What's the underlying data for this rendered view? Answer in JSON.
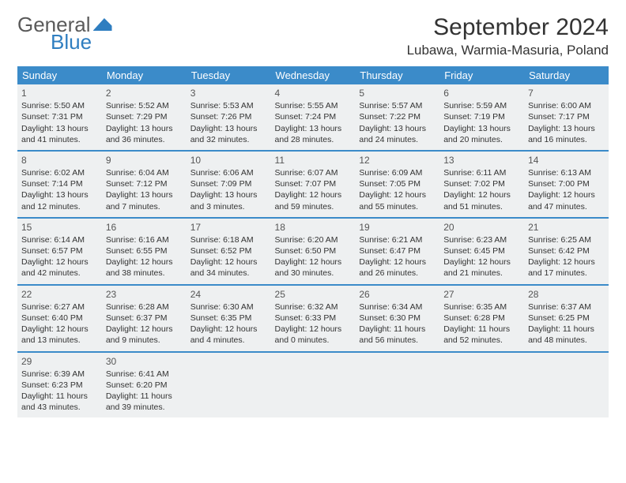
{
  "brand": {
    "word1": "General",
    "word2": "Blue"
  },
  "title": "September 2024",
  "location": "Lubawa, Warmia-Masuria, Poland",
  "colors": {
    "header_bg": "#3b8bc9",
    "header_text": "#ffffff",
    "cell_bg": "#eef0f1",
    "text": "#333333",
    "brand_blue": "#2f7ec0",
    "brand_gray": "#5a5a5a"
  },
  "weekdays": [
    "Sunday",
    "Monday",
    "Tuesday",
    "Wednesday",
    "Thursday",
    "Friday",
    "Saturday"
  ],
  "days": [
    {
      "n": "1",
      "sr": "5:50 AM",
      "ss": "7:31 PM",
      "dl": "13 hours and 41 minutes."
    },
    {
      "n": "2",
      "sr": "5:52 AM",
      "ss": "7:29 PM",
      "dl": "13 hours and 36 minutes."
    },
    {
      "n": "3",
      "sr": "5:53 AM",
      "ss": "7:26 PM",
      "dl": "13 hours and 32 minutes."
    },
    {
      "n": "4",
      "sr": "5:55 AM",
      "ss": "7:24 PM",
      "dl": "13 hours and 28 minutes."
    },
    {
      "n": "5",
      "sr": "5:57 AM",
      "ss": "7:22 PM",
      "dl": "13 hours and 24 minutes."
    },
    {
      "n": "6",
      "sr": "5:59 AM",
      "ss": "7:19 PM",
      "dl": "13 hours and 20 minutes."
    },
    {
      "n": "7",
      "sr": "6:00 AM",
      "ss": "7:17 PM",
      "dl": "13 hours and 16 minutes."
    },
    {
      "n": "8",
      "sr": "6:02 AM",
      "ss": "7:14 PM",
      "dl": "13 hours and 12 minutes."
    },
    {
      "n": "9",
      "sr": "6:04 AM",
      "ss": "7:12 PM",
      "dl": "13 hours and 7 minutes."
    },
    {
      "n": "10",
      "sr": "6:06 AM",
      "ss": "7:09 PM",
      "dl": "13 hours and 3 minutes."
    },
    {
      "n": "11",
      "sr": "6:07 AM",
      "ss": "7:07 PM",
      "dl": "12 hours and 59 minutes."
    },
    {
      "n": "12",
      "sr": "6:09 AM",
      "ss": "7:05 PM",
      "dl": "12 hours and 55 minutes."
    },
    {
      "n": "13",
      "sr": "6:11 AM",
      "ss": "7:02 PM",
      "dl": "12 hours and 51 minutes."
    },
    {
      "n": "14",
      "sr": "6:13 AM",
      "ss": "7:00 PM",
      "dl": "12 hours and 47 minutes."
    },
    {
      "n": "15",
      "sr": "6:14 AM",
      "ss": "6:57 PM",
      "dl": "12 hours and 42 minutes."
    },
    {
      "n": "16",
      "sr": "6:16 AM",
      "ss": "6:55 PM",
      "dl": "12 hours and 38 minutes."
    },
    {
      "n": "17",
      "sr": "6:18 AM",
      "ss": "6:52 PM",
      "dl": "12 hours and 34 minutes."
    },
    {
      "n": "18",
      "sr": "6:20 AM",
      "ss": "6:50 PM",
      "dl": "12 hours and 30 minutes."
    },
    {
      "n": "19",
      "sr": "6:21 AM",
      "ss": "6:47 PM",
      "dl": "12 hours and 26 minutes."
    },
    {
      "n": "20",
      "sr": "6:23 AM",
      "ss": "6:45 PM",
      "dl": "12 hours and 21 minutes."
    },
    {
      "n": "21",
      "sr": "6:25 AM",
      "ss": "6:42 PM",
      "dl": "12 hours and 17 minutes."
    },
    {
      "n": "22",
      "sr": "6:27 AM",
      "ss": "6:40 PM",
      "dl": "12 hours and 13 minutes."
    },
    {
      "n": "23",
      "sr": "6:28 AM",
      "ss": "6:37 PM",
      "dl": "12 hours and 9 minutes."
    },
    {
      "n": "24",
      "sr": "6:30 AM",
      "ss": "6:35 PM",
      "dl": "12 hours and 4 minutes."
    },
    {
      "n": "25",
      "sr": "6:32 AM",
      "ss": "6:33 PM",
      "dl": "12 hours and 0 minutes."
    },
    {
      "n": "26",
      "sr": "6:34 AM",
      "ss": "6:30 PM",
      "dl": "11 hours and 56 minutes."
    },
    {
      "n": "27",
      "sr": "6:35 AM",
      "ss": "6:28 PM",
      "dl": "11 hours and 52 minutes."
    },
    {
      "n": "28",
      "sr": "6:37 AM",
      "ss": "6:25 PM",
      "dl": "11 hours and 48 minutes."
    },
    {
      "n": "29",
      "sr": "6:39 AM",
      "ss": "6:23 PM",
      "dl": "11 hours and 43 minutes."
    },
    {
      "n": "30",
      "sr": "6:41 AM",
      "ss": "6:20 PM",
      "dl": "11 hours and 39 minutes."
    }
  ],
  "labels": {
    "sunrise": "Sunrise:",
    "sunset": "Sunset:",
    "daylight": "Daylight:"
  },
  "layout": {
    "start_weekday_index": 0,
    "total_cells": 35
  }
}
